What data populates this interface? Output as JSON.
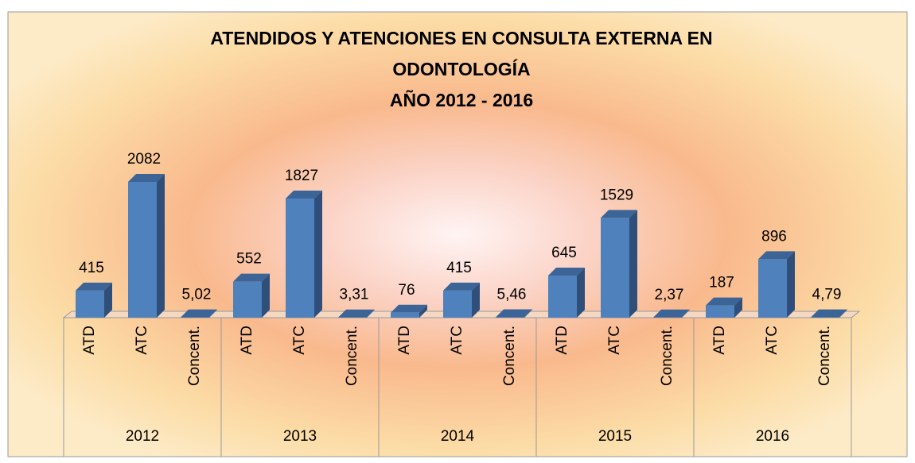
{
  "chart_data": {
    "type": "bar",
    "title": [
      "ATENDIDOS Y ATENCIONES EN CONSULTA EXTERNA EN",
      "ODONTOLOGÍA",
      "AÑO 2012 - 2016"
    ],
    "groups": [
      "2012",
      "2013",
      "2014",
      "2015",
      "2016"
    ],
    "categories": [
      "ATD",
      "ATC",
      "Concent.",
      "ATD",
      "ATC",
      "Concent.",
      "ATD",
      "ATC",
      "Concent.",
      "ATD",
      "ATC",
      "Concent.",
      "ATD",
      "ATC",
      "Concent."
    ],
    "values": [
      415,
      2082,
      5.02,
      552,
      1827,
      3.31,
      76,
      415,
      5.46,
      645,
      1529,
      2.37,
      187,
      896,
      4.79
    ],
    "value_labels": [
      "415",
      "2082",
      "5,02",
      "552",
      "1827",
      "3,31",
      "76",
      "415",
      "5,46",
      "645",
      "1529",
      "2,37",
      "187",
      "896",
      "4,79"
    ],
    "color": "#4f81bd"
  }
}
